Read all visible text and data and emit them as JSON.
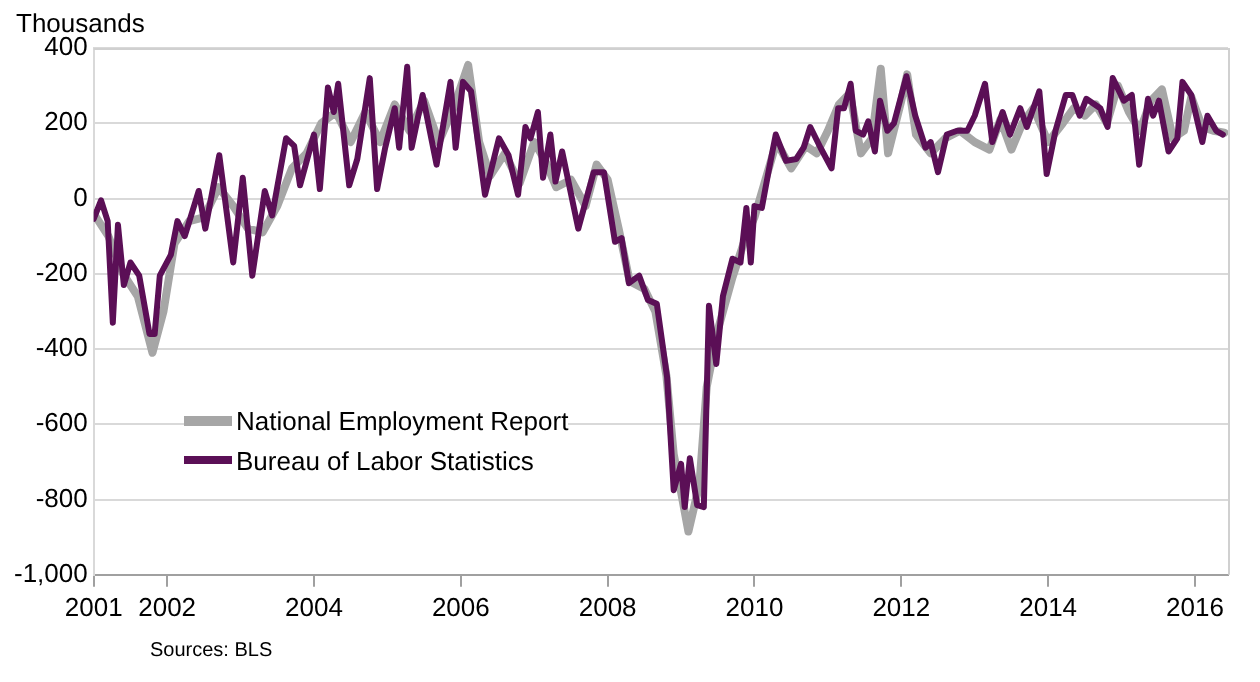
{
  "chart_data": {
    "type": "line",
    "ylabel": "Thousands",
    "annotations": [
      "Sources: BLS"
    ],
    "xlim": [
      2001,
      2016.45
    ],
    "xticks": [
      2001,
      2002,
      2004,
      2006,
      2008,
      2010,
      2012,
      2014,
      2016
    ],
    "ylim": [
      -1000,
      400
    ],
    "yticks": [
      400,
      200,
      0,
      -200,
      -400,
      -600,
      -800,
      {
        "value": -1000,
        "label": "-1,000"
      }
    ],
    "grid": "y",
    "legend": "bottom left",
    "marker": "none",
    "line_style": "solid",
    "series": [
      {
        "name": "National Employment Report",
        "color": "#a6a6a6",
        "x": [
          2001.0,
          2001.2,
          2001.4,
          2001.6,
          2001.8,
          2001.95,
          2002.1,
          2002.3,
          2002.5,
          2002.7,
          2002.9,
          2003.1,
          2003.3,
          2003.5,
          2003.7,
          2003.9,
          2004.1,
          2004.3,
          2004.5,
          2004.7,
          2004.9,
          2005.1,
          2005.3,
          2005.5,
          2005.7,
          2005.9,
          2006.1,
          2006.25,
          2006.4,
          2006.6,
          2006.8,
          2007.0,
          2007.15,
          2007.3,
          2007.5,
          2007.7,
          2007.85,
          2008.0,
          2008.15,
          2008.3,
          2008.5,
          2008.65,
          2008.8,
          2008.9,
          2009.0,
          2009.1,
          2009.25,
          2009.35,
          2009.5,
          2009.7,
          2009.85,
          2010.0,
          2010.15,
          2010.3,
          2010.5,
          2010.7,
          2010.85,
          2011.0,
          2011.15,
          2011.3,
          2011.45,
          2011.6,
          2011.72,
          2011.82,
          2012.0,
          2012.08,
          2012.2,
          2012.4,
          2012.6,
          2012.8,
          2013.0,
          2013.2,
          2013.35,
          2013.5,
          2013.65,
          2013.8,
          2014.0,
          2014.2,
          2014.35,
          2014.5,
          2014.65,
          2014.8,
          2014.95,
          2015.1,
          2015.25,
          2015.4,
          2015.55,
          2015.7,
          2015.85,
          2015.95,
          2016.1,
          2016.25,
          2016.4
        ],
        "values": [
          -40,
          -100,
          -200,
          -260,
          -410,
          -300,
          -120,
          -60,
          -50,
          30,
          -20,
          -80,
          -90,
          -20,
          80,
          120,
          200,
          230,
          150,
          230,
          150,
          250,
          180,
          260,
          150,
          240,
          355,
          150,
          60,
          120,
          40,
          150,
          100,
          30,
          50,
          -20,
          90,
          50,
          -80,
          -220,
          -240,
          -300,
          -470,
          -680,
          -780,
          -885,
          -760,
          -500,
          -350,
          -210,
          -120,
          -50,
          50,
          150,
          80,
          140,
          120,
          180,
          250,
          280,
          120,
          160,
          345,
          120,
          260,
          330,
          170,
          120,
          160,
          180,
          150,
          130,
          210,
          130,
          200,
          240,
          150,
          200,
          240,
          220,
          250,
          200,
          300,
          230,
          180,
          260,
          290,
          160,
          180,
          270,
          190,
          180,
          175
        ]
      },
      {
        "name": "Bureau of Labor Statistics",
        "color": "#5b0f56",
        "x": [
          2001.0,
          2001.1,
          2001.19,
          2001.26,
          2001.33,
          2001.41,
          2001.5,
          2001.62,
          2001.76,
          2001.83,
          2001.9,
          2002.05,
          2002.14,
          2002.24,
          2002.43,
          2002.52,
          2002.71,
          2002.9,
          2003.03,
          2003.16,
          2003.33,
          2003.43,
          2003.62,
          2003.73,
          2003.81,
          2004.0,
          2004.08,
          2004.19,
          2004.27,
          2004.33,
          2004.48,
          2004.59,
          2004.76,
          2004.86,
          2004.97,
          2005.1,
          2005.16,
          2005.27,
          2005.33,
          2005.48,
          2005.67,
          2005.86,
          2005.93,
          2006.03,
          2006.14,
          2006.33,
          2006.52,
          2006.65,
          2006.78,
          2006.88,
          2006.95,
          2007.05,
          2007.12,
          2007.22,
          2007.29,
          2007.38,
          2007.6,
          2007.81,
          2007.95,
          2008.1,
          2008.19,
          2008.29,
          2008.43,
          2008.55,
          2008.67,
          2008.81,
          2008.9,
          2009.0,
          2009.05,
          2009.12,
          2009.22,
          2009.31,
          2009.38,
          2009.48,
          2009.57,
          2009.7,
          2009.81,
          2009.89,
          2009.95,
          2010.0,
          2010.1,
          2010.19,
          2010.29,
          2010.43,
          2010.57,
          2010.67,
          2010.76,
          2010.9,
          2011.05,
          2011.14,
          2011.22,
          2011.31,
          2011.38,
          2011.48,
          2011.55,
          2011.64,
          2011.71,
          2011.81,
          2011.9,
          2012.07,
          2012.19,
          2012.33,
          2012.4,
          2012.5,
          2012.62,
          2012.76,
          2012.9,
          2013.0,
          2013.14,
          2013.24,
          2013.38,
          2013.48,
          2013.62,
          2013.71,
          2013.88,
          2013.98,
          2014.1,
          2014.24,
          2014.33,
          2014.43,
          2014.52,
          2014.71,
          2014.81,
          2014.88,
          2015.03,
          2015.14,
          2015.24,
          2015.36,
          2015.43,
          2015.51,
          2015.64,
          2015.76,
          2015.83,
          2015.95,
          2016.1,
          2016.17,
          2016.29,
          2016.38
        ],
        "values": [
          -54,
          -5,
          -60,
          -330,
          -70,
          -230,
          -170,
          -205,
          -360,
          -360,
          -205,
          -150,
          -60,
          -100,
          20,
          -80,
          115,
          -170,
          55,
          -205,
          20,
          -45,
          160,
          140,
          35,
          170,
          25,
          295,
          230,
          305,
          35,
          105,
          320,
          25,
          135,
          240,
          135,
          350,
          135,
          275,
          90,
          310,
          135,
          310,
          285,
          10,
          160,
          115,
          10,
          190,
          160,
          230,
          55,
          170,
          45,
          125,
          -80,
          70,
          70,
          -115,
          -105,
          -225,
          -205,
          -270,
          -280,
          -475,
          -775,
          -705,
          -820,
          -690,
          -815,
          -820,
          -285,
          -440,
          -260,
          -160,
          -170,
          -25,
          -170,
          -20,
          -25,
          70,
          170,
          100,
          105,
          135,
          190,
          135,
          80,
          240,
          240,
          305,
          180,
          170,
          205,
          125,
          260,
          180,
          200,
          325,
          220,
          135,
          150,
          70,
          170,
          180,
          180,
          220,
          305,
          150,
          230,
          170,
          240,
          190,
          285,
          65,
          180,
          275,
          275,
          220,
          265,
          240,
          190,
          320,
          260,
          275,
          90,
          265,
          220,
          260,
          125,
          160,
          310,
          275,
          150,
          220,
          180,
          170
        ]
      }
    ]
  }
}
